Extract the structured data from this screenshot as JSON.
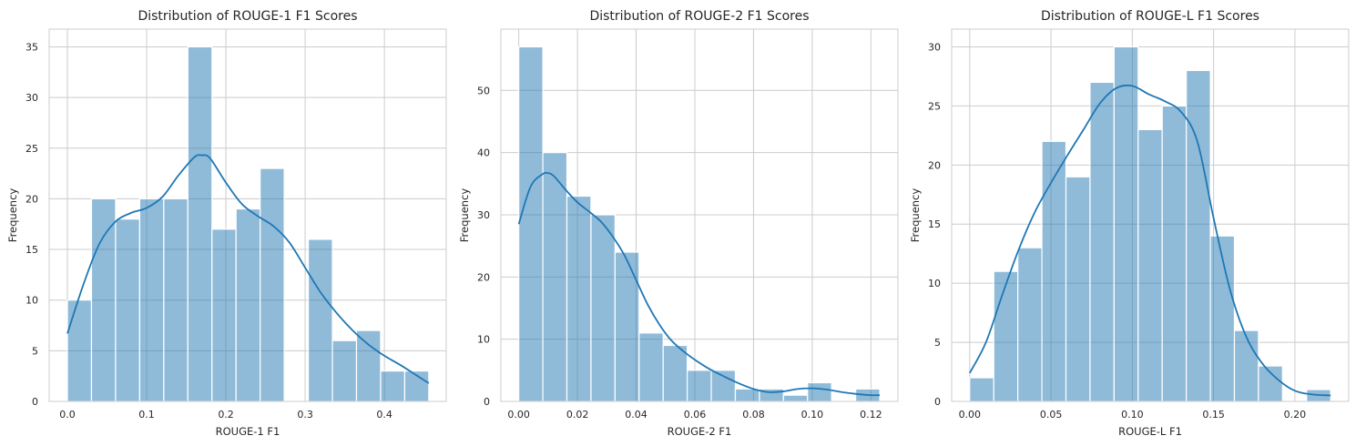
{
  "chart_data": [
    {
      "type": "bar",
      "subtype": "histogram-with-kde",
      "title": "Distribution of ROUGE-1 F1 Scores",
      "xlabel": "ROUGE-1 F1",
      "ylabel": "Frequency",
      "xlim": [
        -0.023,
        0.478
      ],
      "ylim": [
        0,
        36.75
      ],
      "bin_start": 0.0,
      "bin_width": 0.0304,
      "values": [
        10,
        20,
        18,
        20,
        20,
        35,
        17,
        19,
        23,
        0,
        16,
        6,
        7,
        3,
        3
      ],
      "x_ticks": [
        0.0,
        0.1,
        0.2,
        0.3,
        0.4
      ],
      "x_tick_labels": [
        "0.0",
        "0.1",
        "0.2",
        "0.3",
        "0.4"
      ],
      "y_ticks": [
        0,
        5,
        10,
        15,
        20,
        25,
        30,
        35
      ],
      "y_tick_labels": [
        "0",
        "5",
        "10",
        "15",
        "20",
        "25",
        "30",
        "35"
      ],
      "kde": {
        "x": [
          0.0,
          0.02,
          0.04,
          0.06,
          0.08,
          0.1,
          0.12,
          0.14,
          0.16,
          0.17,
          0.18,
          0.2,
          0.22,
          0.24,
          0.26,
          0.28,
          0.3,
          0.32,
          0.34,
          0.36,
          0.38,
          0.4,
          0.42,
          0.44,
          0.456
        ],
        "y": [
          6.7,
          11.5,
          15.5,
          17.7,
          18.6,
          19.1,
          20.2,
          22.3,
          24.1,
          24.3,
          24.0,
          21.6,
          19.5,
          18.3,
          17.3,
          15.7,
          13.2,
          10.7,
          8.7,
          7.0,
          5.6,
          4.5,
          3.6,
          2.6,
          1.8
        ]
      }
    },
    {
      "type": "bar",
      "subtype": "histogram-with-kde",
      "title": "Distribution of ROUGE-2 F1 Scores",
      "xlabel": "ROUGE-2 F1",
      "ylabel": "Frequency",
      "xlim": [
        -0.0061,
        0.1292
      ],
      "ylim": [
        0,
        59.85
      ],
      "bin_start": 0.0,
      "bin_width": 0.0082,
      "values": [
        57,
        40,
        33,
        30,
        24,
        11,
        9,
        5,
        5,
        2,
        2,
        1,
        3,
        0,
        2
      ],
      "x_ticks": [
        0.0,
        0.02,
        0.04,
        0.06,
        0.08,
        0.1,
        0.12
      ],
      "x_tick_labels": [
        "0.00",
        "0.02",
        "0.04",
        "0.06",
        "0.08",
        "0.10",
        "0.12"
      ],
      "y_ticks": [
        0,
        10,
        20,
        30,
        40,
        50
      ],
      "y_tick_labels": [
        "0",
        "10",
        "20",
        "30",
        "40",
        "50"
      ],
      "kde": {
        "x": [
          0.0,
          0.004,
          0.008,
          0.01,
          0.012,
          0.016,
          0.02,
          0.024,
          0.028,
          0.032,
          0.036,
          0.04,
          0.044,
          0.048,
          0.052,
          0.056,
          0.06,
          0.065,
          0.07,
          0.075,
          0.08,
          0.085,
          0.09,
          0.095,
          0.1,
          0.105,
          0.11,
          0.115,
          0.12,
          0.123
        ],
        "y": [
          28.5,
          34.5,
          36.5,
          36.7,
          36.2,
          34.0,
          32.0,
          30.5,
          28.9,
          26.5,
          23.5,
          19.5,
          15.5,
          12.3,
          9.8,
          8.1,
          6.7,
          5.2,
          4.0,
          2.9,
          2.0,
          1.5,
          1.6,
          2.0,
          2.1,
          1.9,
          1.5,
          1.2,
          1.0,
          1.0
        ]
      }
    },
    {
      "type": "bar",
      "subtype": "histogram-with-kde",
      "title": "Distribution of ROUGE-L F1 Scores",
      "xlabel": "ROUGE-L F1",
      "ylabel": "Frequency",
      "xlim": [
        -0.0111,
        0.2331
      ],
      "ylim": [
        0,
        31.5
      ],
      "bin_start": 0.0,
      "bin_width": 0.0148,
      "values": [
        2,
        11,
        13,
        22,
        19,
        27,
        30,
        23,
        25,
        28,
        14,
        6,
        3,
        0,
        1
      ],
      "x_ticks": [
        0.0,
        0.05,
        0.1,
        0.15,
        0.2
      ],
      "x_tick_labels": [
        "0.00",
        "0.05",
        "0.10",
        "0.15",
        "0.20"
      ],
      "y_ticks": [
        0,
        5,
        10,
        15,
        20,
        25,
        30
      ],
      "y_tick_labels": [
        "0",
        "5",
        "10",
        "15",
        "20",
        "25",
        "30"
      ],
      "kde": {
        "x": [
          0.0,
          0.01,
          0.02,
          0.03,
          0.04,
          0.05,
          0.06,
          0.07,
          0.08,
          0.09,
          0.1,
          0.11,
          0.12,
          0.13,
          0.14,
          0.15,
          0.16,
          0.17,
          0.18,
          0.19,
          0.2,
          0.21,
          0.222
        ],
        "y": [
          2.4,
          5.0,
          9.0,
          12.8,
          16.0,
          18.5,
          20.8,
          23.0,
          25.2,
          26.5,
          26.7,
          26.0,
          25.4,
          24.5,
          22.0,
          15.5,
          9.5,
          5.5,
          3.2,
          1.8,
          0.9,
          0.6,
          0.5
        ]
      }
    }
  ]
}
